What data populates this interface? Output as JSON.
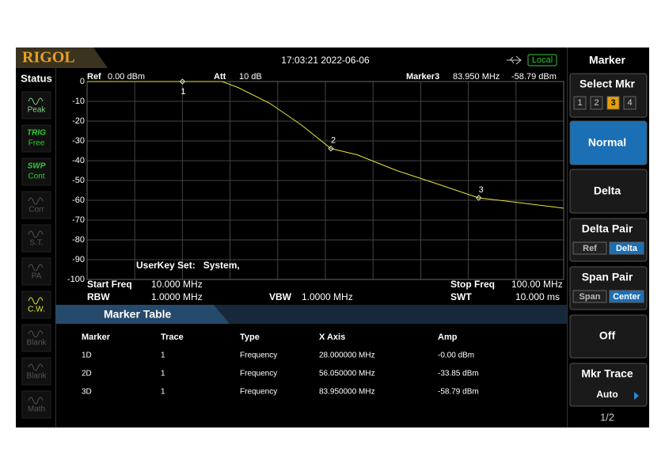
{
  "header": {
    "brand": "RIGOL",
    "datetime": "17:03:21 2022-06-06",
    "mode": "Local"
  },
  "status": {
    "title": "Status",
    "items": [
      {
        "label": "Peak"
      },
      {
        "tag": "TRIG",
        "label": "Free"
      },
      {
        "tag": "SWP",
        "label": "Cont"
      },
      {
        "label": "Corr"
      },
      {
        "label": "S.T."
      },
      {
        "label": "PA"
      },
      {
        "label": "C.W."
      },
      {
        "label": "Blank"
      },
      {
        "label": "Blank"
      },
      {
        "label": "Math"
      }
    ]
  },
  "plot_header": {
    "ref_label": "Ref",
    "ref": "0.00 dBm",
    "att_label": "Att",
    "att": "10 dB",
    "marker_label": "Marker3",
    "marker_freq": "83.950 MHz",
    "marker_amp": "-58.79 dBm"
  },
  "chart_data": {
    "type": "line",
    "x": [
      10,
      20,
      28,
      33,
      35.5,
      38.5,
      44.5,
      50.5,
      56.05,
      61,
      68.5,
      76,
      83.95,
      91,
      100
    ],
    "series": [
      {
        "color": "#e6e632",
        "values": [
          0,
          0,
          0,
          0,
          0,
          -3,
          -11,
          -22,
          -33.85,
          -37,
          -45,
          -51.6,
          -58.79,
          -61,
          -64
        ]
      }
    ],
    "xlim": [
      10,
      100
    ],
    "ylim": [
      -100,
      0
    ],
    "xticks": [
      10,
      19,
      28,
      37,
      46,
      55,
      64,
      73,
      82,
      91,
      100
    ],
    "yticks": [
      0,
      -10,
      -20,
      -30,
      -40,
      -50,
      -60,
      -70,
      -80,
      -90,
      -100
    ],
    "grid": true,
    "markers": [
      {
        "label": "1",
        "x": 28,
        "y": 0
      },
      {
        "label": "2",
        "x": 56.05,
        "y": -33.85
      },
      {
        "label": "3",
        "x": 83.95,
        "y": -58.79
      }
    ],
    "annotation": "UserKey Set:   System,"
  },
  "footer": {
    "start_freq_label": "Start Freq",
    "start_freq": "10.000 MHz",
    "stop_freq_label": "Stop Freq",
    "stop_freq": "100.00 MHz",
    "rbw_label": "RBW",
    "rbw": "1.0000 MHz",
    "vbw_label": "VBW",
    "vbw": "1.0000 MHz",
    "swt_label": "SWT",
    "swt": "10.000 ms"
  },
  "marker_table": {
    "title": "Marker Table",
    "columns": [
      "Marker",
      "Trace",
      "Type",
      "X Axis",
      "Amp"
    ],
    "rows": [
      [
        "1D",
        "1",
        "Frequency",
        "28.000000 MHz",
        "-0.00 dBm"
      ],
      [
        "2D",
        "1",
        "Frequency",
        "56.050000 MHz",
        "-33.85 dBm"
      ],
      [
        "3D",
        "1",
        "Frequency",
        "83.950000 MHz",
        "-58.79 dBm"
      ]
    ]
  },
  "menu": {
    "title": "Marker",
    "select_mkr": "Select Mkr",
    "mkr_numbers": [
      "1",
      "2",
      "3",
      "4"
    ],
    "normal": "Normal",
    "delta": "Delta",
    "delta_pair": "Delta Pair",
    "delta_pair_options": [
      "Ref",
      "Delta"
    ],
    "span_pair": "Span Pair",
    "span_pair_options": [
      "Span",
      "Center"
    ],
    "off": "Off",
    "mkr_trace": "Mkr Trace",
    "mkr_trace_value": "Auto",
    "page": "1/2"
  }
}
